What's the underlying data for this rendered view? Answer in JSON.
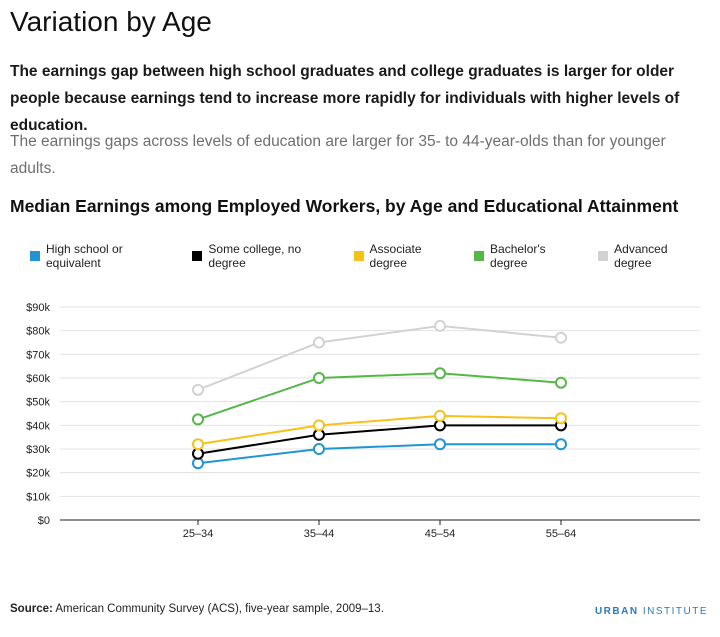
{
  "page": {
    "title": "Variation by Age",
    "lead": "The earnings gap between high school graduates and college graduates is larger for older people because earnings tend to increase more rapidly for individuals with higher levels of education.",
    "body": "The earnings gaps across levels of education are larger for 35- to 44-year-olds than for younger adults."
  },
  "chart_data": {
    "type": "line",
    "title": "Median Earnings among Employed Workers, by Age and Educational Attainment",
    "categories": [
      "25–34",
      "35–44",
      "45–54",
      "55–64"
    ],
    "ylim": [
      0,
      90000
    ],
    "yticks": [
      0,
      10000,
      20000,
      30000,
      40000,
      50000,
      60000,
      70000,
      80000,
      90000
    ],
    "ytick_labels": [
      "$0",
      "$10k",
      "$20k",
      "$30k",
      "$40k",
      "$50k",
      "$60k",
      "$70k",
      "$80k",
      "$90k"
    ],
    "grid": true,
    "legend_position": "top",
    "series": [
      {
        "name": "High school or equivalent",
        "color": "#1f96d3",
        "values": [
          24000,
          30000,
          32000,
          32000
        ]
      },
      {
        "name": "Some college, no degree",
        "color": "#000000",
        "values": [
          28000,
          36000,
          40000,
          40000
        ]
      },
      {
        "name": "Associate degree",
        "color": "#f5c219",
        "values": [
          32000,
          40000,
          44000,
          43000
        ]
      },
      {
        "name": "Bachelor's degree",
        "color": "#55b748",
        "values": [
          42500,
          60000,
          62000,
          58000
        ]
      },
      {
        "name": "Advanced degree",
        "color": "#d2d2d2",
        "values": [
          55000,
          75000,
          82000,
          77000
        ]
      }
    ]
  },
  "footer": {
    "source_label": "Source:",
    "source_text": " American Community Survey (ACS), five-year sample, 2009–13.",
    "brand_first": "URBAN",
    "brand_second": " INSTITUTE"
  }
}
